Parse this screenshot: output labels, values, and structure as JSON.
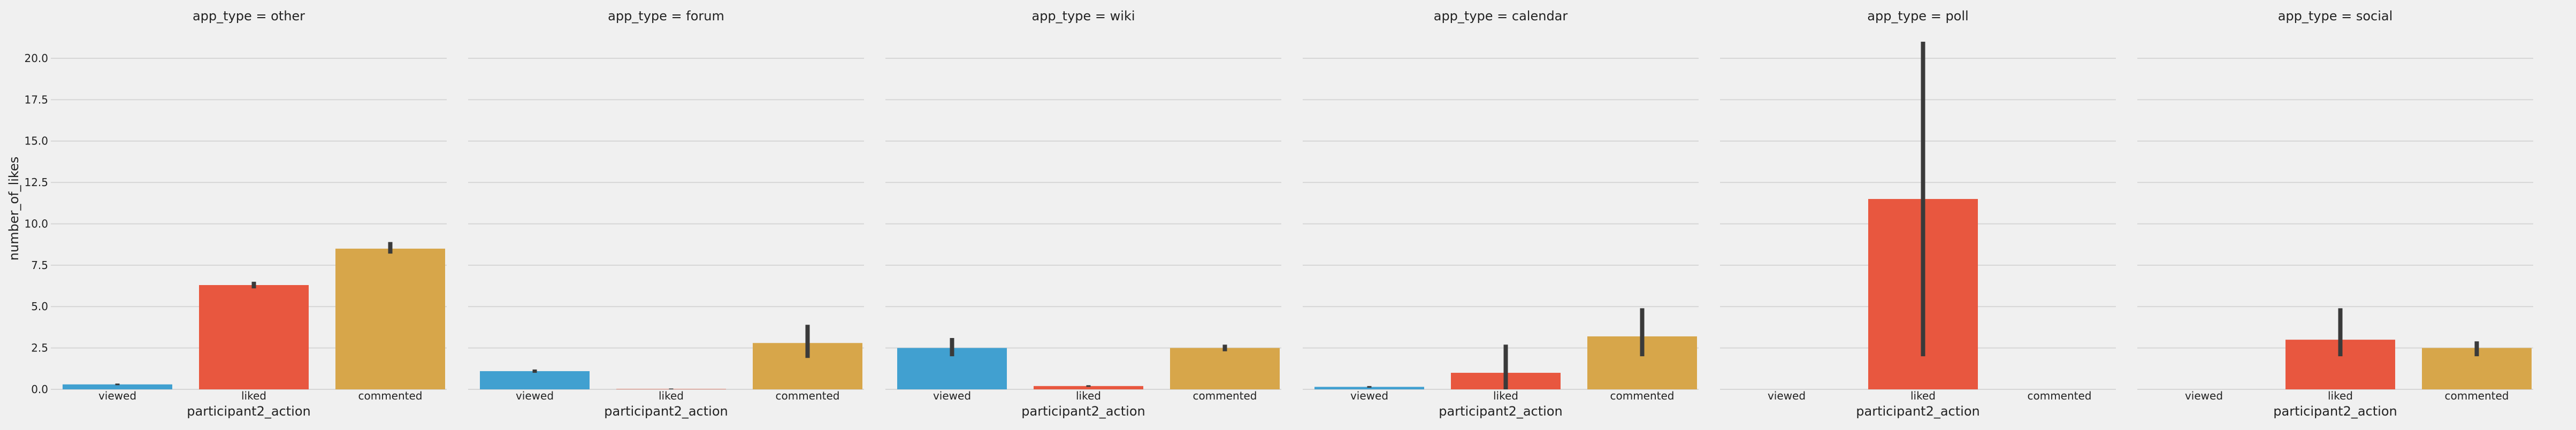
{
  "chart_data": {
    "type": "bar",
    "layout": "facet-grid",
    "ylabel": "number_of_likes",
    "xlabel": "participant2_action",
    "categories": [
      "viewed",
      "liked",
      "commented"
    ],
    "ylim": [
      0,
      21
    ],
    "yticks": [
      "0.0",
      "2.5",
      "5.0",
      "7.5",
      "10.0",
      "12.5",
      "15.0",
      "17.5",
      "20.0"
    ],
    "ytick_values": [
      0,
      2.5,
      5,
      7.5,
      10,
      12.5,
      15,
      17.5,
      20
    ],
    "grid": true,
    "colors": {
      "viewed": "#41a0d0",
      "liked": "#e8573f",
      "commented": "#d7a64a",
      "errorbar": "#3a3a3a",
      "grid": "#d6d6d6",
      "background": "#f0f0f0"
    },
    "facets": [
      {
        "title": "app_type = other",
        "values": [
          0.3,
          6.3,
          8.5
        ],
        "err_low": [
          0.25,
          6.1,
          8.2
        ],
        "err_high": [
          0.35,
          6.5,
          8.9
        ]
      },
      {
        "title": "app_type = forum",
        "values": [
          1.1,
          0.02,
          2.8
        ],
        "err_low": [
          1.0,
          0.0,
          1.9
        ],
        "err_high": [
          1.2,
          0.05,
          3.9
        ]
      },
      {
        "title": "app_type = wiki",
        "values": [
          2.5,
          0.2,
          2.5
        ],
        "err_low": [
          2.0,
          0.15,
          2.3
        ],
        "err_high": [
          3.1,
          0.25,
          2.7
        ]
      },
      {
        "title": "app_type = calendar",
        "values": [
          0.15,
          1.0,
          3.2
        ],
        "err_low": [
          0.1,
          0.0,
          2.0
        ],
        "err_high": [
          0.2,
          2.7,
          4.9
        ]
      },
      {
        "title": "app_type = poll",
        "values": [
          null,
          11.5,
          null
        ],
        "err_low": [
          null,
          2.0,
          null
        ],
        "err_high": [
          null,
          21.0,
          null
        ]
      },
      {
        "title": "app_type = social",
        "values": [
          null,
          3.0,
          2.5
        ],
        "err_low": [
          null,
          2.0,
          2.0
        ],
        "err_high": [
          null,
          4.9,
          2.9
        ]
      }
    ]
  }
}
